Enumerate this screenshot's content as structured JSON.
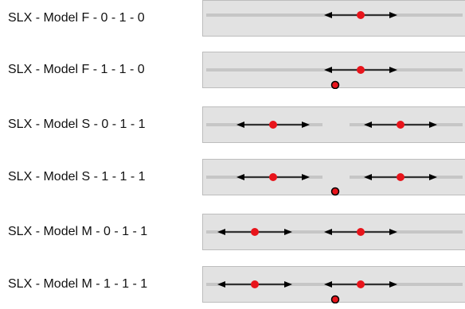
{
  "rows": [
    {
      "label": "SLX - Model F - 0 - 1 - 0"
    },
    {
      "label": "SLX - Model F - 1 - 1 - 0"
    },
    {
      "label": "SLX - Model S - 0 - 1 - 1"
    },
    {
      "label": "SLX - Model S - 1 - 1 - 1"
    },
    {
      "label": "SLX - Model M - 0 - 1 - 1"
    },
    {
      "label": "SLX - Model M - 1 - 1 - 1"
    }
  ],
  "colors": {
    "panel_bg": "#e2e2e2",
    "track": "#c6c6c6",
    "arrow": "#000000",
    "point": "#e8141b"
  }
}
